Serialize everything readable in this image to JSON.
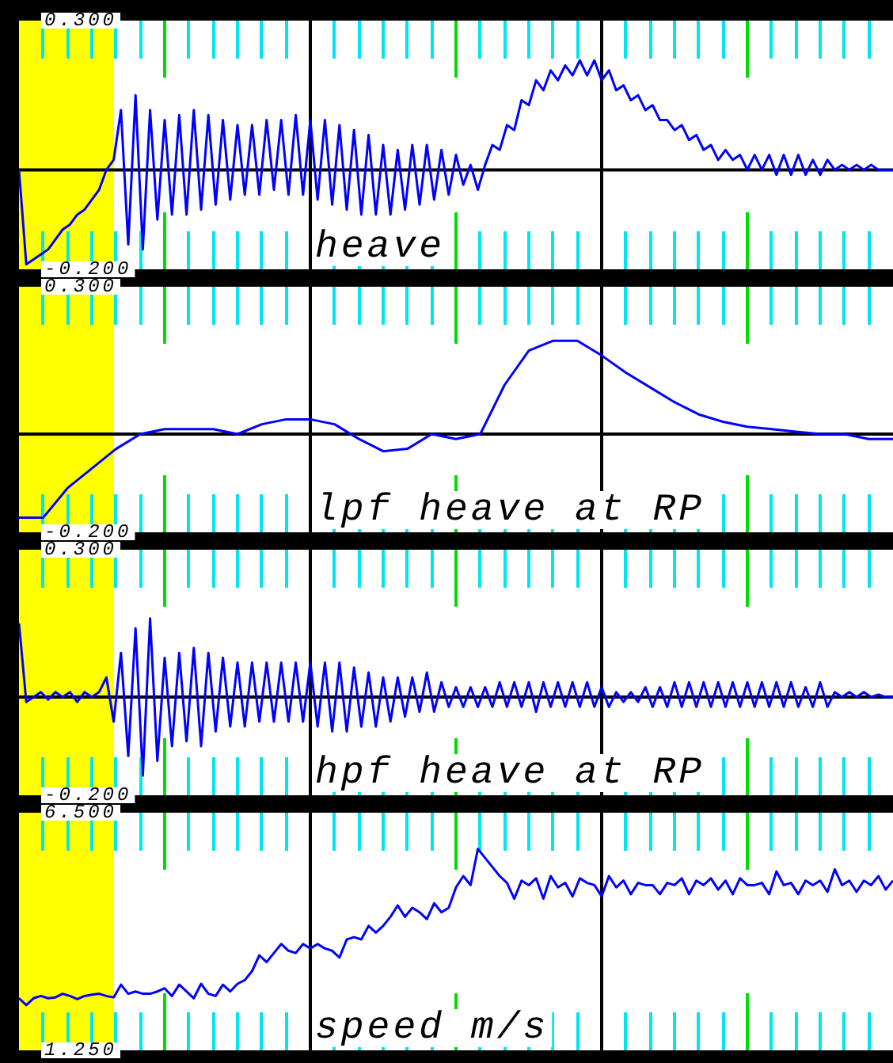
{
  "chart_data": [
    {
      "type": "line",
      "title": "heave",
      "color": "#0000ff",
      "marker": "none",
      "line_style": "solid",
      "tick_labels": "y",
      "grid": false,
      "ylim": [
        -0.2,
        0.3
      ],
      "yticks": [
        {
          "value": -0.2,
          "label": "-0.200"
        },
        {
          "value": 0.3,
          "label": "0.300"
        }
      ],
      "ref_lines": [
        {
          "axis": "y",
          "value": 0,
          "color": "#000000"
        }
      ],
      "categories": [
        null,
        null,
        null,
        null,
        null,
        null,
        null,
        null,
        null,
        null,
        null,
        null,
        null,
        null,
        null,
        null,
        null,
        null,
        null,
        null,
        null,
        null,
        null,
        null,
        null,
        null,
        null,
        null,
        null,
        null,
        null,
        null,
        null,
        null,
        null,
        null,
        null,
        null,
        null,
        null,
        null,
        null,
        null,
        null,
        null,
        null,
        null,
        null,
        null,
        null,
        null,
        null,
        null,
        null,
        null,
        null,
        null,
        null,
        null,
        null,
        null,
        null,
        null,
        null,
        null,
        null,
        null,
        null,
        null,
        null,
        null,
        null,
        null,
        null,
        null,
        null,
        null,
        null,
        null,
        null,
        null,
        null,
        null,
        null,
        null,
        null,
        null,
        null,
        null,
        null,
        null,
        null,
        null,
        null,
        null,
        null,
        null,
        null,
        null,
        null,
        null,
        null,
        null,
        null,
        null,
        null,
        null,
        null,
        null,
        null,
        null,
        null,
        null,
        null,
        null,
        null,
        null,
        null,
        null,
        null,
        null
      ],
      "values": [
        0,
        -0.19,
        -0.18,
        -0.17,
        -0.16,
        -0.14,
        -0.12,
        -0.11,
        -0.09,
        -0.08,
        -0.06,
        -0.04,
        0.0,
        0.02,
        0.12,
        -0.15,
        0.15,
        -0.16,
        0.12,
        -0.1,
        0.1,
        -0.09,
        0.11,
        -0.09,
        0.12,
        -0.08,
        0.11,
        -0.07,
        0.1,
        -0.06,
        0.09,
        -0.05,
        0.09,
        -0.05,
        0.1,
        -0.04,
        0.1,
        -0.05,
        0.11,
        -0.05,
        0.1,
        -0.06,
        0.1,
        -0.07,
        0.09,
        -0.08,
        0.08,
        -0.09,
        0.07,
        -0.09,
        0.05,
        -0.09,
        0.04,
        -0.08,
        0.05,
        -0.07,
        0.05,
        -0.06,
        0.04,
        -0.05,
        0.03,
        -0.03,
        0.01,
        -0.04,
        0.01,
        0.05,
        0.04,
        0.09,
        0.08,
        0.14,
        0.13,
        0.18,
        0.16,
        0.2,
        0.18,
        0.21,
        0.19,
        0.22,
        0.19,
        0.22,
        0.18,
        0.2,
        0.16,
        0.17,
        0.14,
        0.15,
        0.12,
        0.13,
        0.1,
        0.1,
        0.08,
        0.09,
        0.06,
        0.07,
        0.04,
        0.05,
        0.02,
        0.04,
        0.02,
        0.03,
        0.0,
        0.03,
        0.0,
        0.03,
        -0.01,
        0.03,
        -0.01,
        0.03,
        -0.01,
        0.02,
        -0.01,
        0.02,
        0.0,
        0.01,
        0.0,
        0.01,
        0.0,
        0.01,
        0.0,
        0.0,
        0.0
      ]
    },
    {
      "type": "line",
      "title": "lpf heave at RP",
      "color": "#0000ff",
      "marker": "none",
      "line_style": "solid",
      "tick_labels": "y",
      "grid": false,
      "ylim": [
        -0.2,
        0.3
      ],
      "yticks": [
        {
          "value": -0.2,
          "label": "-0.200"
        },
        {
          "value": 0.3,
          "label": "0.300"
        }
      ],
      "ref_lines": [
        {
          "axis": "y",
          "value": 0,
          "color": "#000000"
        }
      ],
      "categories": [
        null,
        null,
        null,
        null,
        null,
        null,
        null,
        null,
        null,
        null,
        null,
        null,
        null,
        null,
        null,
        null,
        null,
        null,
        null,
        null,
        null,
        null,
        null,
        null,
        null,
        null,
        null,
        null,
        null,
        null,
        null,
        null,
        null,
        null,
        null,
        null,
        null
      ],
      "values": [
        -0.17,
        -0.17,
        -0.11,
        -0.07,
        -0.03,
        0.0,
        0.01,
        0.01,
        0.01,
        0.0,
        0.02,
        0.03,
        0.03,
        0.02,
        -0.01,
        -0.035,
        -0.03,
        0.0,
        -0.01,
        0.0,
        0.1,
        0.17,
        0.19,
        0.19,
        0.16,
        0.125,
        0.095,
        0.065,
        0.04,
        0.025,
        0.015,
        0.01,
        0.005,
        0.0,
        0.0,
        -0.01,
        -0.01
      ]
    },
    {
      "type": "line",
      "title": "hpf heave at RP",
      "color": "#0000ff",
      "marker": "none",
      "line_style": "solid",
      "tick_labels": "y",
      "grid": false,
      "ylim": [
        -0.2,
        0.3
      ],
      "yticks": [
        {
          "value": -0.2,
          "label": "-0.200"
        },
        {
          "value": 0.3,
          "label": "0.300"
        }
      ],
      "ref_lines": [
        {
          "axis": "y",
          "value": 0,
          "color": "#000000"
        }
      ],
      "categories": [
        null,
        null,
        null,
        null,
        null,
        null,
        null,
        null,
        null,
        null,
        null,
        null,
        null,
        null,
        null,
        null,
        null,
        null,
        null,
        null,
        null,
        null,
        null,
        null,
        null,
        null,
        null,
        null,
        null,
        null,
        null,
        null,
        null,
        null,
        null,
        null,
        null,
        null,
        null,
        null,
        null,
        null,
        null,
        null,
        null,
        null,
        null,
        null,
        null,
        null,
        null,
        null,
        null,
        null,
        null,
        null,
        null,
        null,
        null,
        null,
        null,
        null,
        null,
        null,
        null,
        null,
        null,
        null,
        null,
        null,
        null,
        null,
        null,
        null,
        null,
        null,
        null,
        null,
        null,
        null,
        null,
        null,
        null,
        null,
        null,
        null,
        null,
        null,
        null,
        null,
        null,
        null,
        null,
        null,
        null,
        null,
        null,
        null,
        null,
        null,
        null,
        null,
        null,
        null,
        null,
        null,
        null,
        null,
        null,
        null,
        null,
        null,
        null,
        null,
        null,
        null,
        null,
        null,
        null,
        null,
        null
      ],
      "values": [
        0.15,
        -0.01,
        0.0,
        0.01,
        -0.005,
        0.01,
        0.0,
        0.01,
        -0.01,
        0.01,
        0.0,
        0.01,
        0.04,
        -0.05,
        0.09,
        -0.12,
        0.14,
        -0.16,
        0.16,
        -0.13,
        0.08,
        -0.1,
        0.09,
        -0.09,
        0.1,
        -0.1,
        0.09,
        -0.07,
        0.08,
        -0.06,
        0.07,
        -0.06,
        0.07,
        -0.05,
        0.07,
        -0.05,
        0.07,
        -0.05,
        0.07,
        -0.05,
        0.07,
        -0.06,
        0.07,
        -0.07,
        0.07,
        -0.07,
        0.06,
        -0.06,
        0.05,
        -0.06,
        0.04,
        -0.05,
        0.04,
        -0.04,
        0.04,
        -0.03,
        0.05,
        -0.03,
        0.03,
        -0.02,
        0.02,
        -0.02,
        0.02,
        -0.02,
        0.02,
        -0.02,
        0.03,
        -0.02,
        0.03,
        -0.02,
        0.03,
        -0.03,
        0.03,
        -0.02,
        0.03,
        -0.02,
        0.03,
        -0.02,
        0.03,
        -0.02,
        0.02,
        -0.02,
        0.01,
        -0.01,
        0.01,
        -0.01,
        0.02,
        -0.02,
        0.02,
        -0.02,
        0.03,
        -0.02,
        0.03,
        -0.02,
        0.03,
        -0.02,
        0.03,
        -0.02,
        0.03,
        -0.02,
        0.03,
        -0.02,
        0.03,
        -0.02,
        0.03,
        -0.02,
        0.03,
        -0.02,
        0.02,
        -0.02,
        0.03,
        -0.02,
        0.01,
        0.0,
        0.01,
        0.0,
        0.01,
        0.0,
        0.005,
        0.0,
        0.0
      ]
    },
    {
      "type": "line",
      "title": "speed m/s",
      "color": "#0000ff",
      "marker": "none",
      "line_style": "solid",
      "tick_labels": "y",
      "grid": false,
      "ylim": [
        1.25,
        6.5
      ],
      "yticks": [
        {
          "value": 1.25,
          "label": "1.250"
        },
        {
          "value": 6.5,
          "label": "6.500"
        }
      ],
      "categories": [
        null,
        null,
        null,
        null,
        null,
        null,
        null,
        null,
        null,
        null,
        null,
        null,
        null,
        null,
        null,
        null,
        null,
        null,
        null,
        null,
        null,
        null,
        null,
        null,
        null,
        null,
        null,
        null,
        null,
        null,
        null,
        null,
        null,
        null,
        null,
        null,
        null,
        null,
        null,
        null,
        null,
        null,
        null,
        null,
        null,
        null,
        null,
        null,
        null,
        null,
        null,
        null,
        null,
        null,
        null,
        null,
        null,
        null,
        null,
        null,
        null,
        null,
        null,
        null,
        null,
        null,
        null,
        null,
        null,
        null,
        null,
        null,
        null,
        null,
        null,
        null,
        null,
        null,
        null,
        null,
        null,
        null,
        null,
        null,
        null,
        null,
        null,
        null,
        null,
        null,
        null,
        null,
        null,
        null,
        null,
        null,
        null,
        null,
        null,
        null,
        null,
        null,
        null,
        null,
        null,
        null,
        null,
        null,
        null,
        null,
        null,
        null,
        null,
        null,
        null,
        null,
        null,
        null,
        null,
        null,
        null
      ],
      "values": [
        2.4,
        2.25,
        2.4,
        2.45,
        2.4,
        2.42,
        2.5,
        2.45,
        2.38,
        2.45,
        2.48,
        2.5,
        2.45,
        2.42,
        2.7,
        2.5,
        2.55,
        2.5,
        2.5,
        2.55,
        2.62,
        2.45,
        2.7,
        2.55,
        2.4,
        2.72,
        2.5,
        2.45,
        2.7,
        2.55,
        2.72,
        2.8,
        3.0,
        3.35,
        3.2,
        3.4,
        3.6,
        3.45,
        3.4,
        3.6,
        3.5,
        3.6,
        3.5,
        3.45,
        3.3,
        3.7,
        3.75,
        3.7,
        4.0,
        3.85,
        4.0,
        4.2,
        4.45,
        4.2,
        4.4,
        4.3,
        4.15,
        4.5,
        4.3,
        4.4,
        4.85,
        5.1,
        4.9,
        5.7,
        5.5,
        5.3,
        5.1,
        4.95,
        4.6,
        5.0,
        4.9,
        5.05,
        4.6,
        5.1,
        4.85,
        4.95,
        4.65,
        5.05,
        4.95,
        4.9,
        4.65,
        5.1,
        4.85,
        5.0,
        4.7,
        4.95,
        4.9,
        4.9,
        4.7,
        4.95,
        4.9,
        5.05,
        4.7,
        5.0,
        4.9,
        5.05,
        4.8,
        5.0,
        4.7,
        5.05,
        4.9,
        4.9,
        4.95,
        4.7,
        5.2,
        4.9,
        4.95,
        4.7,
        5.0,
        4.9,
        5.0,
        4.75,
        5.25,
        4.9,
        5.0,
        4.75,
        5.0,
        4.9,
        5.1,
        4.8,
        5.0
      ]
    }
  ]
}
